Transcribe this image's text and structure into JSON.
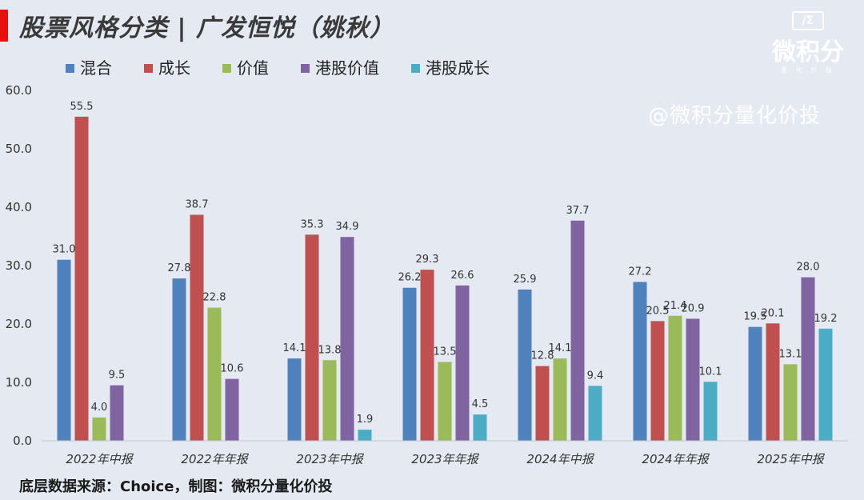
{
  "header": {
    "title": "股票风格分类 | 广发恒悦（姚秋）"
  },
  "logo": {
    "mark": "/Σ",
    "name": "微积分",
    "sub": "量 化 价 投"
  },
  "watermark": "@微积分量化价投",
  "source_note": "底层数据来源：Choice，制图：微积分量化价投",
  "colors": {
    "background": "#e4e9f2",
    "title_accent": "#e8100f",
    "series": [
      "#4f81bd",
      "#c0504d",
      "#9bbb59",
      "#8064a2",
      "#4bacc6"
    ]
  },
  "chart_data": {
    "type": "bar",
    "title": "",
    "xlabel": "",
    "ylabel": "",
    "ylim": [
      0,
      60
    ],
    "yticks": [
      "0.0",
      "10.0",
      "20.0",
      "30.0",
      "40.0",
      "50.0",
      "60.0"
    ],
    "grid": false,
    "legend_position": "top",
    "categories": [
      "2022年中报",
      "2022年年报",
      "2023年中报",
      "2023年年报",
      "2024年中报",
      "2024年年报",
      "2025年中报"
    ],
    "series": [
      {
        "name": "混合",
        "color": "#4f81bd",
        "values": [
          31.0,
          27.8,
          14.1,
          26.2,
          25.9,
          27.2,
          19.5
        ]
      },
      {
        "name": "成长",
        "color": "#c0504d",
        "values": [
          55.5,
          38.7,
          35.3,
          29.3,
          12.8,
          20.5,
          20.1
        ]
      },
      {
        "name": "价值",
        "color": "#9bbb59",
        "values": [
          4.0,
          22.8,
          13.8,
          13.5,
          14.1,
          21.4,
          13.1
        ]
      },
      {
        "name": "港股价值",
        "color": "#8064a2",
        "values": [
          9.5,
          10.6,
          34.9,
          26.6,
          37.7,
          20.9,
          28.0
        ]
      },
      {
        "name": "港股成长",
        "color": "#4bacc6",
        "values": [
          null,
          null,
          1.9,
          4.5,
          9.4,
          10.1,
          19.2
        ]
      }
    ]
  }
}
